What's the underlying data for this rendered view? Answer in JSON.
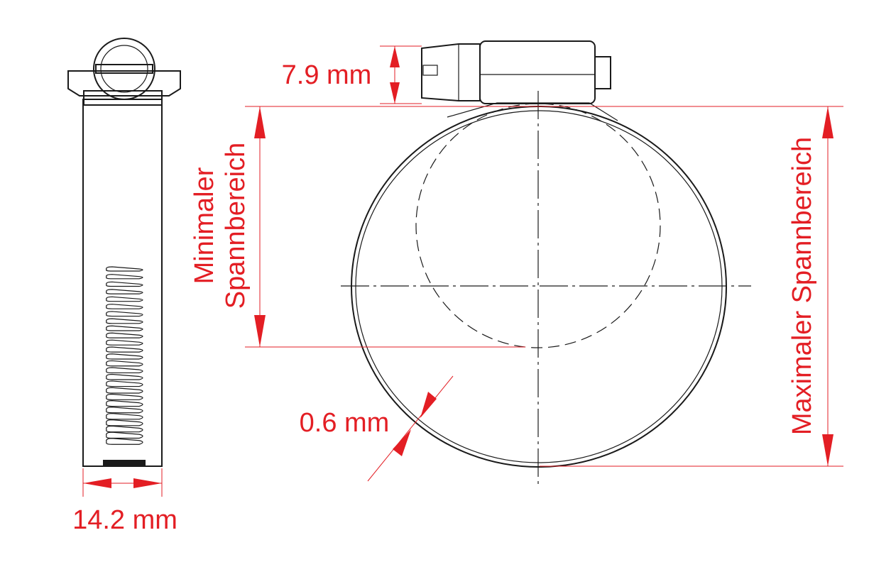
{
  "dimensions": {
    "housing_height": "7.9 mm",
    "min_range": [
      "Minimaler",
      "Spannbereich"
    ],
    "max_range": "Maximaler Spannbereich",
    "band_thickness": "0.6 mm",
    "band_width": "14.2 mm"
  }
}
